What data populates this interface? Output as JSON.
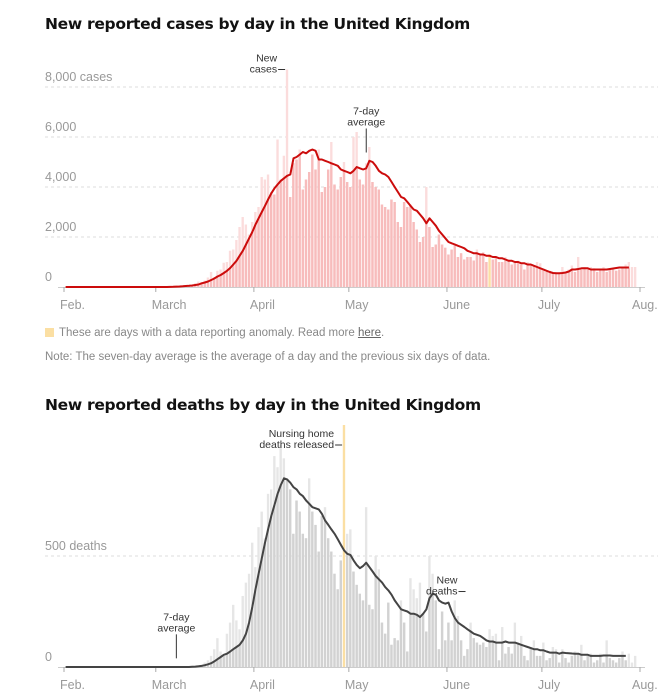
{
  "cases_title": "New reported cases by day in the United Kingdom",
  "deaths_title": "New reported deaths by day in the United Kingdom",
  "legend_anomaly": "These are days with a data reporting anomaly. Read more ",
  "legend_link": "here",
  "legend_end": ".",
  "note": "Note: The seven-day average is the average of a day and the previous six days of data.",
  "colors": {
    "cases_bar": "#f7bcbc",
    "cases_bar_light": "#fbdcdc",
    "cases_line": "#cc0c0c",
    "deaths_bar": "#d2d2d2",
    "deaths_bar_light": "#e6e6e6",
    "deaths_line": "#444444",
    "anomaly": "#fbdfa3"
  },
  "chart_data": [
    {
      "type": "bar",
      "title": "New reported cases by day in the United Kingdom",
      "xlabel": "",
      "ylabel": "cases",
      "ylim": [
        0,
        8000
      ],
      "yticks": [
        {
          "v": 0,
          "label": "0"
        },
        {
          "v": 2000,
          "label": "2,000"
        },
        {
          "v": 4000,
          "label": "4,000"
        },
        {
          "v": 6000,
          "label": "6,000"
        },
        {
          "v": 8000,
          "label": "8,000 cases"
        }
      ],
      "xticks": [
        {
          "day": 0,
          "label": "Feb."
        },
        {
          "day": 29,
          "label": "March"
        },
        {
          "day": 60,
          "label": "April"
        },
        {
          "day": 90,
          "label": "May"
        },
        {
          "day": 121,
          "label": "June"
        },
        {
          "day": 151,
          "label": "July"
        },
        {
          "day": 182,
          "label": "Aug."
        }
      ],
      "start": "2020-02-01",
      "annotations": [
        {
          "day": 70,
          "value": 8700,
          "text": [
            "New",
            "cases"
          ],
          "kind": "bar"
        },
        {
          "day": 95,
          "value": 5300,
          "text": [
            "7-day",
            "average"
          ],
          "kind": "line"
        }
      ],
      "anomaly_days": [
        134
      ],
      "series": [
        {
          "name": "New cases",
          "values": [
            0,
            0,
            0,
            0,
            0,
            0,
            0,
            0,
            0,
            0,
            0,
            0,
            0,
            0,
            0,
            0,
            0,
            0,
            0,
            0,
            0,
            0,
            0,
            0,
            0,
            0,
            0,
            0,
            0,
            0,
            0,
            0,
            10,
            20,
            30,
            30,
            50,
            60,
            70,
            80,
            100,
            150,
            220,
            200,
            260,
            380,
            600,
            400,
            650,
            700,
            970,
            1000,
            1450,
            1500,
            1880,
            2400,
            2800,
            2500,
            2100,
            2600,
            3000,
            3200,
            4400,
            4300,
            4500,
            3800,
            3700,
            5900,
            4300,
            5250,
            8700,
            3600,
            4950,
            5100,
            5500,
            3900,
            4300,
            4600,
            5300,
            4700,
            5500,
            3800,
            4000,
            4700,
            5800,
            4100,
            3900,
            4400,
            5000,
            4200,
            4000,
            6000,
            6200,
            4300,
            4100,
            4950,
            5600,
            4200,
            4000,
            3900,
            3300,
            3200,
            3100,
            3500,
            3400,
            2600,
            2400,
            3400,
            3200,
            3300,
            2600,
            2300,
            1800,
            2000,
            4000,
            2400,
            1600,
            1700,
            2100,
            1700,
            1570,
            1300,
            1500,
            1700,
            1200,
            1350,
            1100,
            1200,
            1200,
            1060,
            1500,
            1350,
            1400,
            1000,
            1300,
            1100,
            1200,
            1000,
            1000,
            1200,
            1100,
            900,
            1000,
            1050,
            900,
            700,
            1000,
            900,
            840,
            1000,
            950,
            700,
            600,
            650,
            600,
            600,
            550,
            800,
            600,
            700,
            860,
            600,
            1200,
            700,
            800,
            700,
            800,
            750,
            600,
            700,
            800,
            600,
            750,
            700,
            650,
            700,
            750,
            900,
            1000,
            800,
            800
          ]
        },
        {
          "name": "7-day average",
          "values": [
            0,
            0,
            0,
            0,
            0,
            0,
            0,
            0,
            0,
            0,
            0,
            0,
            0,
            0,
            0,
            0,
            0,
            0,
            0,
            0,
            0,
            0,
            0,
            0,
            0,
            0,
            0,
            0,
            0,
            0,
            0,
            0,
            0,
            5,
            10,
            15,
            20,
            30,
            40,
            50,
            60,
            80,
            100,
            150,
            180,
            220,
            280,
            340,
            420,
            480,
            560,
            650,
            760,
            900,
            1050,
            1250,
            1450,
            1700,
            1950,
            2200,
            2500,
            2750,
            3000,
            3250,
            3500,
            3750,
            3950,
            4100,
            4250,
            4350,
            4450,
            4500,
            5150,
            5200,
            5300,
            5400,
            5350,
            5450,
            5500,
            5450,
            5100,
            5100,
            5050,
            5000,
            4950,
            4900,
            4850,
            4700,
            4650,
            4600,
            4550,
            4650,
            4800,
            4750,
            4700,
            4750,
            5050,
            5000,
            4850,
            4650,
            4550,
            4500,
            4400,
            4200,
            4000,
            3800,
            3600,
            3550,
            3400,
            3250,
            3100,
            3050,
            2900,
            2750,
            2550,
            2750,
            2600,
            2450,
            2250,
            2100,
            1950,
            1800,
            1750,
            1700,
            1650,
            1600,
            1550,
            1450,
            1400,
            1350,
            1350,
            1300,
            1300,
            1250,
            1250,
            1200,
            1200,
            1150,
            1150,
            1100,
            1050,
            1050,
            1000,
            1000,
            950,
            950,
            900,
            900,
            850,
            800,
            750,
            700,
            650,
            600,
            560,
            550,
            550,
            560,
            580,
            620,
            700,
            700,
            720,
            750,
            750,
            750,
            700,
            700,
            700,
            700,
            700,
            700,
            720,
            740,
            760,
            780,
            780,
            780,
            780
          ]
        }
      ]
    },
    {
      "type": "bar",
      "title": "New reported deaths by day in the United Kingdom",
      "xlabel": "",
      "ylabel": "deaths",
      "ylim": [
        0,
        1000
      ],
      "yticks": [
        {
          "v": 0,
          "label": "0"
        },
        {
          "v": 500,
          "label": "500 deaths"
        }
      ],
      "xticks": [
        {
          "day": 0,
          "label": "Feb."
        },
        {
          "day": 29,
          "label": "March"
        },
        {
          "day": 60,
          "label": "April"
        },
        {
          "day": 90,
          "label": "May"
        },
        {
          "day": 121,
          "label": "June"
        },
        {
          "day": 151,
          "label": "July"
        },
        {
          "day": 182,
          "label": "Aug."
        }
      ],
      "start": "2020-02-01",
      "annotations": [
        {
          "day": 88,
          "value": 1000,
          "text": [
            "Nursing home",
            "deaths released"
          ],
          "kind": "bar"
        },
        {
          "day": 35,
          "value": 30,
          "text": [
            "7-day",
            "average"
          ],
          "kind": "line"
        },
        {
          "day": 127,
          "value": 340,
          "text": [
            "New",
            "deaths"
          ],
          "kind": "bar"
        }
      ],
      "anomaly_days": [
        88
      ],
      "series": [
        {
          "name": "New deaths",
          "values": [
            0,
            0,
            0,
            0,
            0,
            0,
            0,
            0,
            0,
            0,
            0,
            0,
            0,
            0,
            0,
            0,
            0,
            0,
            0,
            0,
            0,
            0,
            0,
            0,
            0,
            0,
            0,
            0,
            0,
            0,
            0,
            0,
            0,
            0,
            1,
            0,
            0,
            0,
            1,
            1,
            2,
            2,
            3,
            10,
            20,
            30,
            50,
            80,
            130,
            70,
            50,
            150,
            200,
            280,
            210,
            170,
            320,
            380,
            420,
            560,
            450,
            630,
            700,
            580,
            780,
            800,
            950,
            900,
            1000,
            940,
            850,
            800,
            600,
            750,
            700,
            600,
            580,
            850,
            700,
            640,
            520,
            680,
            720,
            580,
            520,
            420,
            350,
            480,
            1020,
            600,
            620,
            430,
            370,
            330,
            300,
            720,
            280,
            260,
            500,
            440,
            200,
            150,
            290,
            100,
            130,
            120,
            300,
            200,
            70,
            400,
            350,
            310,
            380,
            240,
            160,
            500,
            420,
            300,
            80,
            250,
            120,
            200,
            120,
            300,
            230,
            120,
            50,
            80,
            200,
            130,
            110,
            100,
            110,
            90,
            170,
            140,
            150,
            30,
            180,
            60,
            90,
            60,
            200,
            110,
            140,
            50,
            30,
            90,
            120,
            50,
            50,
            110,
            30,
            40,
            90,
            80,
            20,
            80,
            40,
            20,
            50,
            70,
            60,
            100,
            30,
            50,
            60,
            20,
            30,
            60,
            20,
            120,
            40,
            30,
            20,
            40,
            70,
            30,
            60,
            20,
            50
          ]
        },
        {
          "name": "7-day average",
          "values": [
            0,
            0,
            0,
            0,
            0,
            0,
            0,
            0,
            0,
            0,
            0,
            0,
            0,
            0,
            0,
            0,
            0,
            0,
            0,
            0,
            0,
            0,
            0,
            0,
            0,
            0,
            0,
            0,
            0,
            0,
            0,
            0,
            0,
            0,
            0,
            0,
            0,
            0,
            0,
            0,
            1,
            2,
            3,
            5,
            8,
            12,
            17,
            25,
            35,
            45,
            55,
            60,
            70,
            80,
            90,
            100,
            120,
            150,
            200,
            270,
            350,
            420,
            490,
            560,
            620,
            680,
            730,
            780,
            820,
            850,
            845,
            830,
            810,
            800,
            780,
            770,
            750,
            735,
            720,
            715,
            710,
            690,
            660,
            640,
            620,
            600,
            575,
            550,
            525,
            510,
            505,
            480,
            460,
            445,
            455,
            470,
            450,
            430,
            410,
            395,
            380,
            360,
            345,
            325,
            300,
            280,
            260,
            255,
            250,
            240,
            240,
            235,
            225,
            240,
            260,
            310,
            330,
            325,
            300,
            290,
            285,
            290,
            250,
            220,
            200,
            190,
            180,
            170,
            160,
            150,
            145,
            140,
            130,
            120,
            115,
            115,
            110,
            110,
            110,
            115,
            110,
            110,
            110,
            105,
            100,
            95,
            90,
            85,
            80,
            80,
            75,
            75,
            70,
            65,
            65,
            65,
            60,
            65,
            63,
            62,
            61,
            60,
            60,
            55,
            55,
            55,
            50,
            50,
            50,
            50,
            52,
            52,
            52,
            50,
            50,
            50,
            50,
            50
          ]
        }
      ]
    }
  ]
}
